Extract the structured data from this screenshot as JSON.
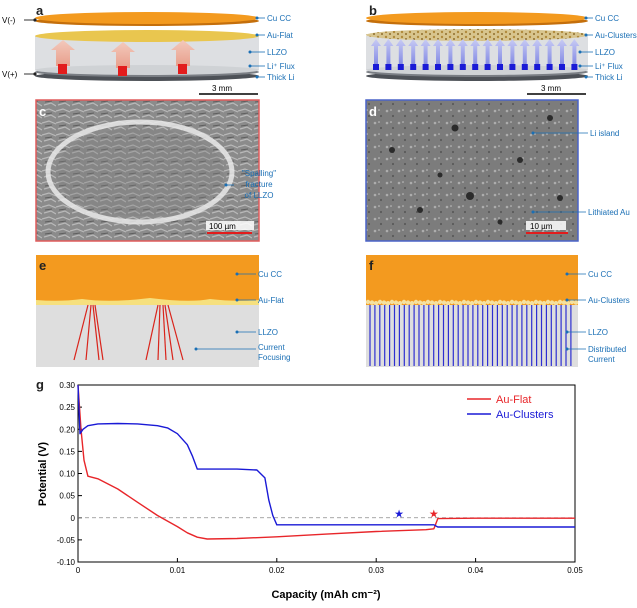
{
  "panels": {
    "a": {
      "letter": "a",
      "v_neg": "V(-)",
      "v_pos": "V(+)",
      "labels": [
        "Cu CC",
        "Au-Flat",
        "LLZO",
        "Li⁺ Flux",
        "Thick Li"
      ],
      "scale": "3 mm"
    },
    "b": {
      "letter": "b",
      "labels": [
        "Cu CC",
        "Au-Clusters",
        "LLZO",
        "Li⁺ Flux",
        "Thick Li"
      ],
      "scale": "3 mm"
    },
    "c": {
      "letter": "c",
      "annotation_lines": [
        "\"Spalling\"",
        "fracture",
        "of LLZO"
      ],
      "scale": "100 µm"
    },
    "d": {
      "letter": "d",
      "annotations": [
        "Li island",
        "Lithiated Au"
      ],
      "scale": "10 µm"
    },
    "e": {
      "letter": "e",
      "labels": [
        "Cu CC",
        "Au-Flat",
        "LLZO"
      ],
      "label4_lines": [
        "Current",
        "Focusing"
      ]
    },
    "f": {
      "letter": "f",
      "labels": [
        "Cu CC",
        "Au-Clusters",
        "LLZO"
      ],
      "label4_lines": [
        "Distributed",
        "Current"
      ]
    },
    "g": {
      "letter": "g"
    }
  },
  "colors": {
    "cu": "#f39a1f",
    "gold": "#e8c24a",
    "llzo": "#d9dcdf",
    "li": "#6b6f74",
    "label": "#1a6fb5",
    "red": "#e8262a",
    "blue": "#1a1ad6",
    "frame_red": "#e05b5b",
    "frame_blue": "#4a63c9"
  },
  "chart_data": {
    "type": "line",
    "title": "",
    "xlabel": "Capacity (mAh cm⁻²)",
    "ylabel": "Potential (V)",
    "xlim": [
      0,
      0.05
    ],
    "ylim": [
      -0.1,
      0.3
    ],
    "x_ticks": [
      0,
      0.01,
      0.02,
      0.03,
      0.04,
      0.05
    ],
    "x_tick_labels": [
      "0",
      "0.01",
      "0.02",
      "0.03",
      "0.04",
      "0.05"
    ],
    "y_ticks": [
      -0.1,
      -0.05,
      0,
      0.05,
      0.1,
      0.15,
      0.2,
      0.25,
      0.3
    ],
    "y_tick_labels": [
      "-0.10",
      "-0.05",
      "0",
      "0.05",
      "0.10",
      "0.15",
      "0.20",
      "0.25",
      "0.30"
    ],
    "zero_line": true,
    "legend_position": "top-right",
    "series": [
      {
        "name": "Au-Flat",
        "color": "#e8262a",
        "x": [
          0,
          0.0003,
          0.0006,
          0.001,
          0.002,
          0.004,
          0.006,
          0.008,
          0.01,
          0.011,
          0.012,
          0.013,
          0.016,
          0.02,
          0.025,
          0.03,
          0.035,
          0.0358,
          0.0362,
          0.04,
          0.045,
          0.05
        ],
        "y": [
          0.3,
          0.2,
          0.13,
          0.094,
          0.088,
          0.065,
          0.035,
          0.005,
          -0.02,
          -0.034,
          -0.044,
          -0.048,
          -0.047,
          -0.043,
          -0.037,
          -0.031,
          -0.027,
          -0.025,
          -0.002,
          -0.001,
          -0.001,
          -0.001
        ]
      },
      {
        "name": "Au-Clusters",
        "color": "#1a1ad6",
        "x": [
          0,
          0.0002,
          0.0005,
          0.001,
          0.002,
          0.004,
          0.006,
          0.008,
          0.009,
          0.01,
          0.011,
          0.0115,
          0.012,
          0.013,
          0.016,
          0.018,
          0.0188,
          0.0192,
          0.0196,
          0.02,
          0.025,
          0.03,
          0.035,
          0.0358,
          0.0362,
          0.04,
          0.05
        ],
        "y": [
          0.3,
          0.19,
          0.2,
          0.208,
          0.212,
          0.213,
          0.212,
          0.208,
          0.203,
          0.19,
          0.165,
          0.14,
          0.11,
          0.11,
          0.11,
          0.108,
          0.09,
          0.04,
          0.005,
          -0.016,
          -0.016,
          -0.016,
          -0.016,
          -0.016,
          -0.021,
          -0.021,
          -0.021
        ]
      }
    ],
    "markers": [
      {
        "name": "Au-Clusters short",
        "symbol": "★",
        "x": 0.0323,
        "y": 0.01,
        "color": "#1a1ad6"
      },
      {
        "name": "Au-Flat short",
        "symbol": "★",
        "x": 0.0358,
        "y": 0.01,
        "color": "#e8262a"
      }
    ]
  }
}
